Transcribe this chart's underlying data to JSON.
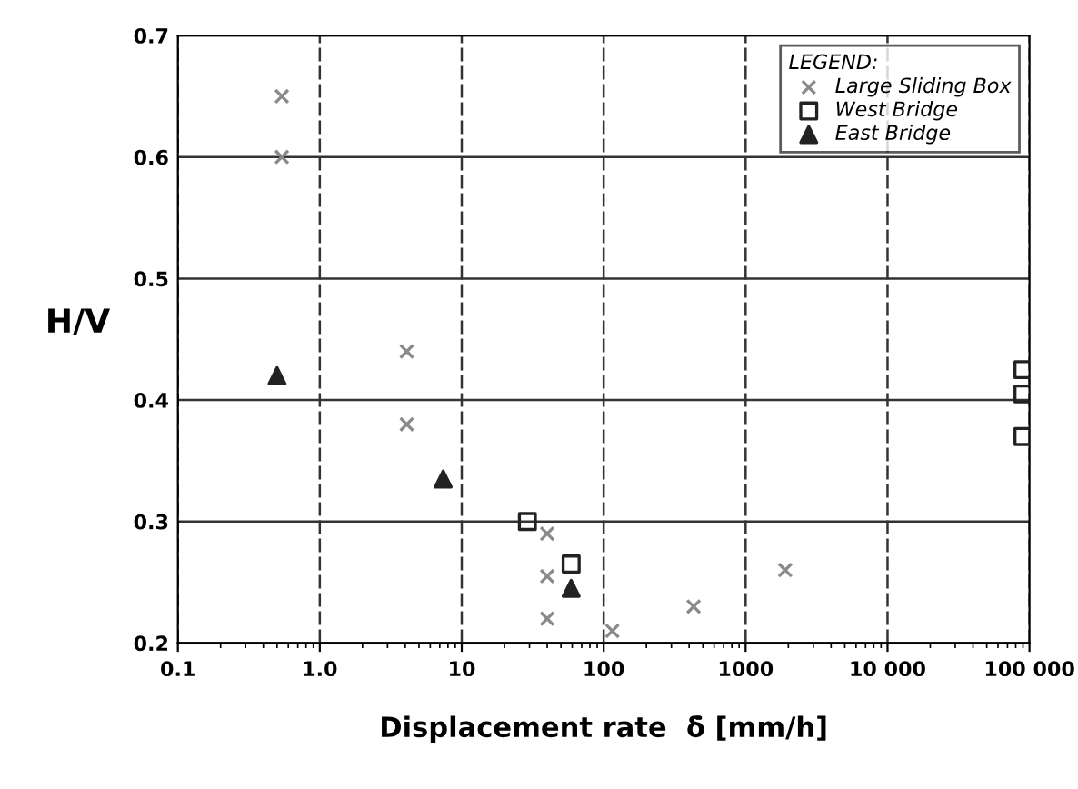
{
  "chart_data": {
    "type": "scatter",
    "xlabel": "Displacement rate  δ̇ [mm/h]",
    "ylabel": "H/V",
    "legend_title": "LEGEND:",
    "log": "x",
    "xlim": [
      0.1,
      100000
    ],
    "ylim": [
      0.2,
      0.7
    ],
    "xticks": [
      0.1,
      {
        "value": 1,
        "label": "1.0"
      },
      10,
      100,
      1000,
      {
        "value": 10000,
        "label": "10 000"
      },
      {
        "value": 100000,
        "label": "100 000"
      }
    ],
    "yticks": [
      0.2,
      0.3,
      0.4,
      0.5,
      0.6,
      0.7
    ],
    "grid": true,
    "legend": "top right",
    "series": [
      {
        "name": "Large Sliding Box",
        "color": "#8a8a8a",
        "marker": "cross",
        "x": [
          0.54,
          0.54,
          4.1,
          4.1,
          40,
          40,
          40,
          115,
          430,
          1900
        ],
        "values": [
          0.65,
          0.6,
          0.44,
          0.38,
          0.29,
          0.255,
          0.22,
          0.21,
          0.23,
          0.26
        ]
      },
      {
        "name": "West Bridge",
        "color": "#222222",
        "marker": "square",
        "x": [
          29,
          59,
          90000,
          90000,
          90000
        ],
        "values": [
          0.3,
          0.265,
          0.425,
          0.405,
          0.37
        ]
      },
      {
        "name": "East Bridge",
        "color": "#222222",
        "marker": "triangle",
        "x": [
          0.5,
          7.4,
          59
        ],
        "values": [
          0.42,
          0.335,
          0.245
        ]
      }
    ]
  }
}
